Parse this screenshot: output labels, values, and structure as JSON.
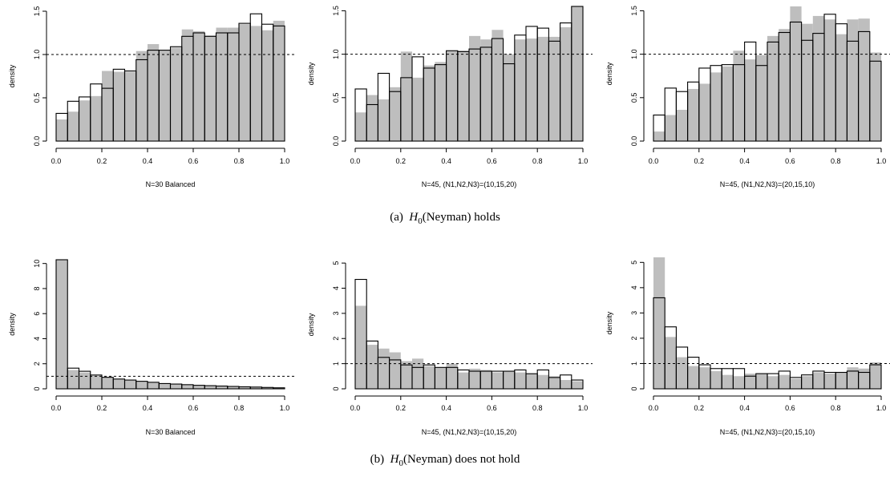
{
  "captions": {
    "a": {
      "label": "(a)",
      "symbol": "H",
      "subscript": "0",
      "text": "(Neyman) holds"
    },
    "b": {
      "label": "(b)",
      "symbol": "H",
      "subscript": "0",
      "text": "(Neyman) does not hold"
    }
  },
  "colors": {
    "gray_fill": "#bebebe",
    "outline": "#000000",
    "reference_line": "#000000"
  },
  "chart_data": [
    {
      "type": "bar",
      "panel": "a1",
      "xlabel": "N=30 Balanced",
      "ylabel": "density",
      "xlim": [
        0,
        1
      ],
      "ylim": [
        0,
        1.5
      ],
      "yticks": [
        0,
        0.5,
        1.0,
        1.5
      ],
      "ytick_labels": [
        "0.0",
        "0.5",
        "1.0",
        "1.5"
      ],
      "xticks": [
        0,
        0.2,
        0.4,
        0.6,
        0.8,
        1.0
      ],
      "xtick_labels": [
        "0.0",
        "0.2",
        "0.4",
        "0.6",
        "0.8",
        "1.0"
      ],
      "reference_line": 1.0,
      "bin_edges": [
        0,
        0.05,
        0.1,
        0.15,
        0.2,
        0.25,
        0.3,
        0.35,
        0.4,
        0.45,
        0.5,
        0.55,
        0.6,
        0.65,
        0.7,
        0.75,
        0.8,
        0.85,
        0.9,
        0.95,
        1.0
      ],
      "series": [
        {
          "style": "filled",
          "values": [
            0.25,
            0.34,
            0.47,
            0.52,
            0.81,
            0.8,
            0.8,
            1.04,
            1.12,
            1.05,
            1.08,
            1.29,
            1.27,
            1.22,
            1.31,
            1.31,
            1.35,
            1.33,
            1.28,
            1.39
          ]
        },
        {
          "style": "outline",
          "values": [
            0.32,
            0.46,
            0.51,
            0.66,
            0.61,
            0.83,
            0.81,
            0.94,
            1.05,
            1.05,
            1.09,
            1.21,
            1.25,
            1.21,
            1.25,
            1.25,
            1.36,
            1.47,
            1.35,
            1.33
          ]
        }
      ]
    },
    {
      "type": "bar",
      "panel": "a2",
      "xlabel": "N=45, (N1,N2,N3)=(10,15,20)",
      "ylabel": "density",
      "xlim": [
        0,
        1
      ],
      "ylim": [
        0,
        1.55
      ],
      "yticks": [
        0,
        0.5,
        1.0,
        1.5
      ],
      "ytick_labels": [
        "0.0",
        "0.5",
        "1.0",
        "1.5"
      ],
      "xticks": [
        0,
        0.2,
        0.4,
        0.6,
        0.8,
        1.0
      ],
      "xtick_labels": [
        "0.0",
        "0.2",
        "0.4",
        "0.6",
        "0.8",
        "1.0"
      ],
      "reference_line": 1.0,
      "bin_edges": [
        0,
        0.05,
        0.1,
        0.15,
        0.2,
        0.25,
        0.3,
        0.35,
        0.4,
        0.45,
        0.5,
        0.55,
        0.6,
        0.65,
        0.7,
        0.75,
        0.8,
        0.85,
        0.9,
        0.95,
        1.0
      ],
      "series": [
        {
          "style": "filled",
          "values": [
            0.33,
            0.53,
            0.48,
            0.62,
            1.03,
            0.73,
            0.87,
            0.91,
            1.04,
            1.04,
            1.21,
            1.17,
            1.28,
            1.0,
            1.17,
            1.18,
            1.2,
            1.2,
            1.31,
            1.55
          ]
        },
        {
          "style": "outline",
          "values": [
            0.6,
            0.42,
            0.78,
            0.57,
            0.73,
            0.97,
            0.84,
            0.88,
            1.04,
            1.03,
            1.06,
            1.08,
            1.18,
            0.89,
            1.22,
            1.32,
            1.3,
            1.15,
            1.36,
            1.55
          ]
        }
      ]
    },
    {
      "type": "bar",
      "panel": "a3",
      "xlabel": "N=45, (N1,N2,N3)=(20,15,10)",
      "ylabel": "density",
      "xlim": [
        0,
        1
      ],
      "ylim": [
        0,
        1.55
      ],
      "yticks": [
        0,
        0.5,
        1.0,
        1.5
      ],
      "ytick_labels": [
        "0.0",
        "0.5",
        "1.0",
        "1.5"
      ],
      "xticks": [
        0,
        0.2,
        0.4,
        0.6,
        0.8,
        1.0
      ],
      "xtick_labels": [
        "0.0",
        "0.2",
        "0.4",
        "0.6",
        "0.8",
        "1.0"
      ],
      "reference_line": 1.0,
      "bin_edges": [
        0,
        0.05,
        0.1,
        0.15,
        0.2,
        0.25,
        0.3,
        0.35,
        0.4,
        0.45,
        0.5,
        0.55,
        0.6,
        0.65,
        0.7,
        0.75,
        0.8,
        0.85,
        0.9,
        0.95,
        1.0
      ],
      "series": [
        {
          "style": "filled",
          "values": [
            0.11,
            0.3,
            0.36,
            0.6,
            0.66,
            0.79,
            0.86,
            1.04,
            0.94,
            0.99,
            1.21,
            1.29,
            1.55,
            1.35,
            1.44,
            1.4,
            1.23,
            1.4,
            1.41,
            1.02
          ]
        },
        {
          "style": "outline",
          "values": [
            0.3,
            0.61,
            0.57,
            0.68,
            0.84,
            0.87,
            0.88,
            0.88,
            1.14,
            0.87,
            1.14,
            1.25,
            1.37,
            1.16,
            1.24,
            1.46,
            1.35,
            1.15,
            1.26,
            0.92
          ]
        }
      ]
    },
    {
      "type": "bar",
      "panel": "b1",
      "xlabel": "N=30 Balanced",
      "ylabel": "density",
      "xlim": [
        0,
        1
      ],
      "ylim": [
        0,
        10.3
      ],
      "yticks": [
        0,
        2,
        4,
        6,
        8,
        10
      ],
      "ytick_labels": [
        "0",
        "2",
        "4",
        "6",
        "8",
        "10"
      ],
      "xticks": [
        0,
        0.2,
        0.4,
        0.6,
        0.8,
        1.0
      ],
      "xtick_labels": [
        "0.0",
        "0.2",
        "0.4",
        "0.6",
        "0.8",
        "1.0"
      ],
      "reference_line": 1.0,
      "bin_edges": [
        0,
        0.05,
        0.1,
        0.15,
        0.2,
        0.25,
        0.3,
        0.35,
        0.4,
        0.45,
        0.5,
        0.55,
        0.6,
        0.65,
        0.7,
        0.75,
        0.8,
        0.85,
        0.9,
        0.95,
        1.0
      ],
      "series": [
        {
          "style": "filled",
          "values": [
            10.3,
            1.5,
            1.3,
            1.05,
            0.9,
            0.8,
            0.72,
            0.62,
            0.55,
            0.45,
            0.4,
            0.35,
            0.3,
            0.27,
            0.24,
            0.21,
            0.18,
            0.16,
            0.13,
            0.1
          ]
        },
        {
          "style": "outline",
          "values": [
            10.3,
            1.65,
            1.4,
            1.1,
            0.92,
            0.78,
            0.7,
            0.6,
            0.52,
            0.42,
            0.38,
            0.33,
            0.28,
            0.25,
            0.22,
            0.19,
            0.16,
            0.14,
            0.11,
            0.08
          ]
        }
      ]
    },
    {
      "type": "bar",
      "panel": "b2",
      "xlabel": "N=45, (N1,N2,N3)=(10,15,20)",
      "ylabel": "density",
      "xlim": [
        0,
        1
      ],
      "ylim": [
        0,
        5.1
      ],
      "yticks": [
        0,
        1,
        2,
        3,
        4,
        5
      ],
      "ytick_labels": [
        "0",
        "1",
        "2",
        "3",
        "4",
        "5"
      ],
      "xticks": [
        0,
        0.2,
        0.4,
        0.6,
        0.8,
        1.0
      ],
      "xtick_labels": [
        "0.0",
        "0.2",
        "0.4",
        "0.6",
        "0.8",
        "1.0"
      ],
      "reference_line": 1.0,
      "bin_edges": [
        0,
        0.05,
        0.1,
        0.15,
        0.2,
        0.25,
        0.3,
        0.35,
        0.4,
        0.45,
        0.5,
        0.55,
        0.6,
        0.65,
        0.7,
        0.75,
        0.8,
        0.85,
        0.9,
        0.95,
        1.0
      ],
      "series": [
        {
          "style": "filled",
          "values": [
            3.3,
            1.75,
            1.6,
            1.45,
            1.1,
            1.2,
            0.9,
            0.85,
            1.0,
            0.65,
            0.8,
            0.75,
            0.65,
            0.7,
            0.65,
            0.6,
            0.55,
            0.5,
            0.35,
            0.3
          ]
        },
        {
          "style": "outline",
          "values": [
            4.35,
            1.9,
            1.25,
            1.15,
            0.95,
            0.85,
            0.95,
            0.85,
            0.85,
            0.75,
            0.7,
            0.7,
            0.7,
            0.7,
            0.75,
            0.6,
            0.75,
            0.45,
            0.55,
            0.35
          ]
        }
      ]
    },
    {
      "type": "bar",
      "panel": "b3",
      "xlabel": "N=45, (N1,N2,N3)=(20,15,10)",
      "ylabel": "density",
      "xlim": [
        0,
        1
      ],
      "ylim": [
        0,
        5.2
      ],
      "yticks": [
        0,
        1,
        2,
        3,
        4,
        5
      ],
      "ytick_labels": [
        "0",
        "1",
        "2",
        "3",
        "4",
        "5"
      ],
      "xticks": [
        0,
        0.2,
        0.4,
        0.6,
        0.8,
        1.0
      ],
      "xtick_labels": [
        "0.0",
        "0.2",
        "0.4",
        "0.6",
        "0.8",
        "1.0"
      ],
      "reference_line": 1.0,
      "bin_edges": [
        0,
        0.05,
        0.1,
        0.15,
        0.2,
        0.25,
        0.3,
        0.35,
        0.4,
        0.45,
        0.5,
        0.55,
        0.6,
        0.65,
        0.7,
        0.75,
        0.8,
        0.85,
        0.9,
        0.95,
        1.0
      ],
      "series": [
        {
          "style": "filled",
          "values": [
            5.2,
            2.05,
            1.25,
            0.9,
            0.85,
            0.7,
            0.55,
            0.5,
            0.6,
            0.6,
            0.5,
            0.55,
            0.4,
            0.5,
            0.65,
            0.6,
            0.65,
            0.85,
            0.8,
            1.05
          ]
        },
        {
          "style": "outline",
          "values": [
            3.6,
            2.45,
            1.65,
            1.25,
            0.95,
            0.8,
            0.8,
            0.8,
            0.5,
            0.6,
            0.6,
            0.7,
            0.45,
            0.55,
            0.7,
            0.65,
            0.65,
            0.7,
            0.65,
            0.95
          ]
        }
      ]
    }
  ]
}
